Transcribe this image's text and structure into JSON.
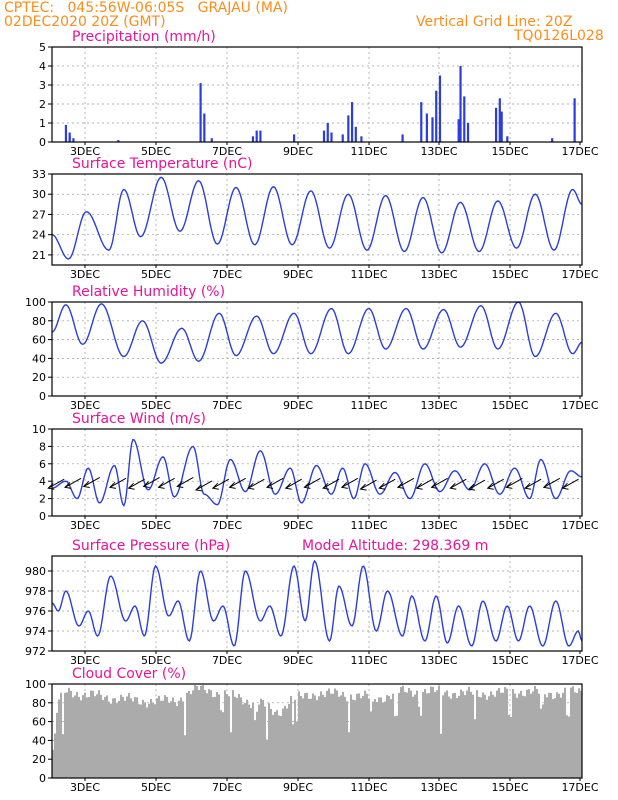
{
  "header": {
    "line1_left": "CPTEC:   045:56W-06:05S   GRAJAU (MA)",
    "line2_left": "02DEC2020 20Z (GMT)",
    "line2_right": "Vertical Grid Line: 20Z",
    "line3_right": "TQ0126L028"
  },
  "colors": {
    "series": "#2b3de0",
    "titles": "#e6149a",
    "header": "#ff8c1a",
    "cloud": "#ababab"
  },
  "date_ticks": [
    "3DEC",
    "5DEC",
    "7DEC",
    "9DEC",
    "11DEC",
    "13DEC",
    "15DEC",
    "17DEC"
  ],
  "chart_data": [
    {
      "type": "bar",
      "title": "Precipitation (mm/h)",
      "ylim": [
        0,
        5
      ],
      "yticks": [
        0,
        1,
        2,
        3,
        4,
        5
      ],
      "x_range_days": [
        2.83,
        17.0
      ],
      "bars": [
        [
          3.2,
          0.9
        ],
        [
          3.3,
          0.5
        ],
        [
          3.3,
          0.3
        ],
        [
          3.4,
          0.2
        ],
        [
          4.6,
          0.1
        ],
        [
          6.8,
          3.1
        ],
        [
          6.9,
          1.5
        ],
        [
          7.1,
          0.2
        ],
        [
          8.2,
          0.3
        ],
        [
          8.3,
          0.6
        ],
        [
          8.4,
          0.6
        ],
        [
          9.3,
          0.4
        ],
        [
          10.1,
          0.6
        ],
        [
          10.2,
          1.0
        ],
        [
          10.3,
          0.5
        ],
        [
          10.6,
          0.4
        ],
        [
          10.75,
          1.4
        ],
        [
          10.85,
          2.1
        ],
        [
          10.95,
          0.8
        ],
        [
          11.1,
          0.3
        ],
        [
          12.2,
          0.4
        ],
        [
          12.7,
          2.1
        ],
        [
          12.85,
          1.5
        ],
        [
          13.0,
          1.3
        ],
        [
          13.1,
          2.7
        ],
        [
          13.2,
          3.5
        ],
        [
          13.7,
          1.2
        ],
        [
          13.75,
          4.0
        ],
        [
          13.85,
          2.4
        ],
        [
          13.95,
          1.0
        ],
        [
          14.7,
          1.8
        ],
        [
          14.8,
          2.3
        ],
        [
          14.85,
          1.6
        ],
        [
          15.0,
          0.3
        ],
        [
          16.2,
          0.2
        ],
        [
          16.8,
          2.3
        ]
      ]
    },
    {
      "type": "line",
      "title": "Surface Temperature (nC)",
      "ylim": [
        19.5,
        33
      ],
      "yticks": [
        21,
        24,
        27,
        30,
        33
      ],
      "x_range_days": [
        2.83,
        17.0
      ],
      "peaks": [
        [
          2.83,
          24.0
        ],
        [
          3.27,
          20.4
        ],
        [
          3.75,
          27.4
        ],
        [
          4.35,
          21.7
        ],
        [
          4.75,
          30.7
        ],
        [
          5.2,
          23.7
        ],
        [
          5.75,
          32.5
        ],
        [
          6.25,
          24.5
        ],
        [
          6.75,
          32.0
        ],
        [
          7.25,
          22.6
        ],
        [
          7.75,
          31.0
        ],
        [
          8.25,
          22.5
        ],
        [
          8.75,
          31.1
        ],
        [
          9.25,
          22.5
        ],
        [
          9.75,
          30.5
        ],
        [
          10.25,
          22.0
        ],
        [
          10.75,
          30.0
        ],
        [
          11.25,
          21.7
        ],
        [
          11.75,
          29.8
        ],
        [
          12.25,
          21.5
        ],
        [
          12.75,
          29.5
        ],
        [
          13.25,
          21.3
        ],
        [
          13.75,
          28.8
        ],
        [
          14.25,
          21.5
        ],
        [
          14.75,
          29.0
        ],
        [
          15.25,
          22.0
        ],
        [
          15.75,
          30.0
        ],
        [
          16.25,
          21.7
        ],
        [
          16.75,
          30.7
        ],
        [
          17.0,
          28.5
        ]
      ]
    },
    {
      "type": "line",
      "title": "Relative Humidity (%)",
      "ylim": [
        0,
        100
      ],
      "yticks": [
        0,
        20,
        40,
        60,
        80,
        100
      ],
      "x_range_days": [
        2.83,
        17.0
      ],
      "peaks": [
        [
          2.83,
          68.0
        ],
        [
          3.2,
          97.0
        ],
        [
          3.65,
          55.0
        ],
        [
          4.15,
          98.0
        ],
        [
          4.75,
          42.0
        ],
        [
          5.25,
          80.0
        ],
        [
          5.75,
          35.0
        ],
        [
          6.3,
          72.0
        ],
        [
          6.75,
          37.0
        ],
        [
          7.3,
          88.0
        ],
        [
          7.75,
          43.0
        ],
        [
          8.3,
          85.0
        ],
        [
          8.75,
          45.0
        ],
        [
          9.3,
          88.0
        ],
        [
          9.75,
          45.0
        ],
        [
          10.3,
          93.0
        ],
        [
          10.75,
          45.0
        ],
        [
          11.3,
          93.0
        ],
        [
          11.75,
          50.0
        ],
        [
          12.3,
          93.0
        ],
        [
          12.75,
          50.0
        ],
        [
          13.3,
          92.0
        ],
        [
          13.75,
          52.0
        ],
        [
          14.3,
          96.0
        ],
        [
          14.75,
          50.0
        ],
        [
          15.3,
          100.0
        ],
        [
          15.75,
          42.0
        ],
        [
          16.3,
          88.0
        ],
        [
          16.75,
          45.0
        ],
        [
          17.0,
          57.0
        ]
      ]
    },
    {
      "type": "line",
      "title": "Surface Wind (m/s)",
      "ylim": [
        0,
        10
      ],
      "yticks": [
        0,
        2,
        4,
        6,
        8,
        10
      ],
      "x_range_days": [
        2.83,
        17.0
      ],
      "peaks": [
        [
          2.83,
          3.2
        ],
        [
          3.2,
          4.0
        ],
        [
          3.5,
          2.0
        ],
        [
          3.8,
          5.5
        ],
        [
          4.1,
          1.5
        ],
        [
          4.5,
          5.8
        ],
        [
          4.75,
          1.2
        ],
        [
          5.0,
          8.8
        ],
        [
          5.4,
          3.0
        ],
        [
          5.8,
          6.8
        ],
        [
          6.1,
          2.2
        ],
        [
          6.6,
          8.0
        ],
        [
          6.9,
          2.5
        ],
        [
          7.25,
          1.3
        ],
        [
          7.6,
          6.5
        ],
        [
          8.0,
          2.8
        ],
        [
          8.4,
          7.5
        ],
        [
          8.8,
          2.5
        ],
        [
          9.2,
          5.5
        ],
        [
          9.5,
          1.5
        ],
        [
          9.9,
          5.8
        ],
        [
          10.3,
          2.5
        ],
        [
          10.6,
          5.5
        ],
        [
          10.9,
          2.0
        ],
        [
          11.2,
          6.0
        ],
        [
          11.6,
          2.5
        ],
        [
          12.0,
          5.0
        ],
        [
          12.4,
          2.0
        ],
        [
          12.8,
          6.0
        ],
        [
          13.2,
          2.8
        ],
        [
          13.6,
          5.2
        ],
        [
          14.0,
          3.0
        ],
        [
          14.4,
          6.0
        ],
        [
          14.8,
          2.5
        ],
        [
          15.2,
          5.5
        ],
        [
          15.6,
          2.0
        ],
        [
          15.9,
          6.5
        ],
        [
          16.3,
          2.0
        ],
        [
          16.7,
          5.2
        ],
        [
          17.0,
          4.5
        ]
      ],
      "wind_arrows": [
        [
          3.05,
          4.0
        ],
        [
          3.5,
          4.1
        ],
        [
          4.0,
          4.2
        ],
        [
          4.7,
          4.1
        ],
        [
          5.2,
          4.0
        ],
        [
          5.6,
          4.2
        ],
        [
          6.0,
          4.1
        ],
        [
          6.5,
          4.2
        ],
        [
          7.0,
          3.8
        ],
        [
          7.45,
          4.0
        ],
        [
          7.9,
          4.1
        ],
        [
          8.4,
          4.0
        ],
        [
          8.9,
          4.1
        ],
        [
          9.4,
          4.0
        ],
        [
          9.9,
          4.1
        ],
        [
          10.4,
          4.0
        ],
        [
          10.9,
          4.1
        ],
        [
          11.4,
          3.9
        ],
        [
          11.9,
          4.0
        ],
        [
          12.4,
          4.1
        ],
        [
          12.9,
          4.0
        ],
        [
          13.3,
          4.1
        ],
        [
          13.8,
          4.0
        ],
        [
          14.3,
          3.9
        ],
        [
          14.8,
          4.0
        ],
        [
          15.3,
          4.1
        ],
        [
          15.8,
          4.0
        ],
        [
          16.3,
          4.1
        ],
        [
          16.8,
          4.0
        ]
      ]
    },
    {
      "type": "line",
      "title": "Surface Pressure (hPa)",
      "annotation": "Model Altitude: 298.369 m",
      "ylim": [
        972,
        981.5
      ],
      "yticks": [
        972,
        974,
        976,
        978,
        980
      ],
      "x_range_days": [
        2.83,
        17.0
      ],
      "peaks": [
        [
          2.83,
          976.8
        ],
        [
          3.0,
          976.0
        ],
        [
          3.2,
          978.0
        ],
        [
          3.55,
          974.5
        ],
        [
          3.8,
          976.0
        ],
        [
          4.05,
          973.5
        ],
        [
          4.4,
          979.5
        ],
        [
          4.8,
          975.0
        ],
        [
          5.05,
          976.5
        ],
        [
          5.3,
          973.5
        ],
        [
          5.6,
          980.5
        ],
        [
          5.95,
          975.5
        ],
        [
          6.2,
          977.0
        ],
        [
          6.5,
          973.0
        ],
        [
          6.8,
          980.0
        ],
        [
          7.15,
          975.0
        ],
        [
          7.4,
          976.5
        ],
        [
          7.7,
          972.5
        ],
        [
          8.0,
          980.0
        ],
        [
          8.4,
          975.0
        ],
        [
          8.65,
          976.5
        ],
        [
          8.95,
          973.5
        ],
        [
          9.3,
          980.5
        ],
        [
          9.6,
          975.0
        ],
        [
          9.85,
          981.0
        ],
        [
          10.25,
          973.0
        ],
        [
          10.5,
          978.5
        ],
        [
          10.85,
          974.5
        ],
        [
          11.15,
          980.5
        ],
        [
          11.5,
          974.0
        ],
        [
          11.8,
          978.0
        ],
        [
          12.2,
          973.5
        ],
        [
          12.45,
          977.5
        ],
        [
          12.8,
          973.0
        ],
        [
          13.1,
          977.5
        ],
        [
          13.4,
          972.8
        ],
        [
          13.7,
          976.5
        ],
        [
          14.05,
          972.5
        ],
        [
          14.35,
          977.0
        ],
        [
          14.7,
          973.0
        ],
        [
          15.0,
          976.5
        ],
        [
          15.3,
          973.0
        ],
        [
          15.6,
          976.5
        ],
        [
          15.95,
          972.5
        ],
        [
          16.3,
          977.0
        ],
        [
          16.65,
          972.5
        ],
        [
          16.9,
          974.0
        ],
        [
          17.0,
          973.0
        ]
      ]
    },
    {
      "type": "bar",
      "title": "Cloud Cover (%)",
      "ylim": [
        0,
        100
      ],
      "yticks": [
        0,
        20,
        40,
        60,
        80,
        100
      ],
      "x_range_days": [
        2.83,
        17.0
      ],
      "profile": [
        [
          2.83,
          30
        ],
        [
          3.0,
          85
        ],
        [
          3.2,
          92
        ],
        [
          3.8,
          88
        ],
        [
          4.5,
          85
        ],
        [
          5.2,
          82
        ],
        [
          6.0,
          82
        ],
        [
          6.8,
          95
        ],
        [
          7.5,
          88
        ],
        [
          8.3,
          80
        ],
        [
          8.8,
          70
        ],
        [
          9.3,
          85
        ],
        [
          10.0,
          90
        ],
        [
          10.8,
          88
        ],
        [
          11.5,
          85
        ],
        [
          12.2,
          92
        ],
        [
          13.0,
          92
        ],
        [
          13.8,
          90
        ],
        [
          14.6,
          90
        ],
        [
          15.4,
          92
        ],
        [
          16.2,
          90
        ],
        [
          17.0,
          92
        ]
      ],
      "dips": [
        [
          3.1,
          45
        ],
        [
          6.35,
          40
        ],
        [
          7.35,
          55
        ],
        [
          7.6,
          42
        ],
        [
          8.25,
          50
        ],
        [
          8.55,
          40
        ],
        [
          9.25,
          55
        ],
        [
          9.35,
          58
        ],
        [
          10.75,
          45
        ],
        [
          11.35,
          60
        ],
        [
          12.0,
          50
        ],
        [
          12.65,
          55
        ],
        [
          13.2,
          45
        ],
        [
          14.1,
          55
        ],
        [
          15.05,
          50
        ],
        [
          15.9,
          60
        ],
        [
          16.6,
          50
        ]
      ]
    }
  ]
}
